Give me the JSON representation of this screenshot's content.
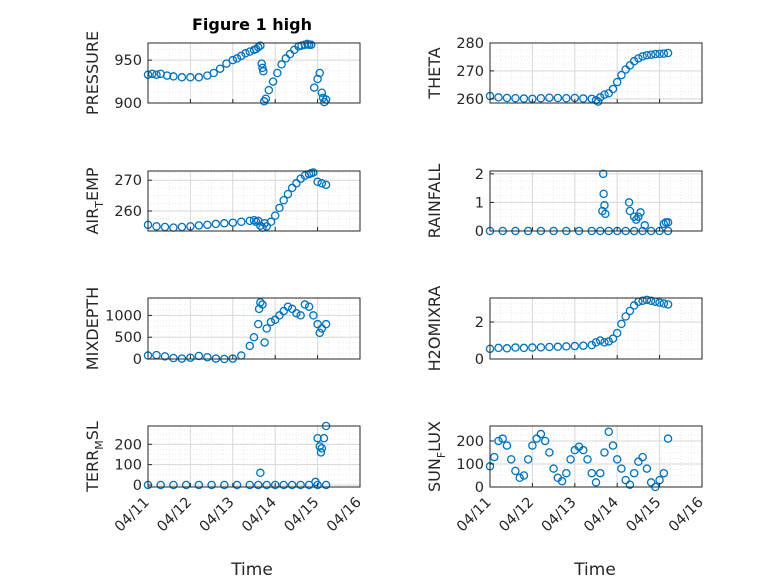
{
  "figure_title": "Figure 1 high",
  "x_axis_label": "Time",
  "chart_data": [
    {
      "type": "scatter",
      "ylabel": "PRESSURE",
      "ylim": [
        900,
        970
      ],
      "yticks": [
        900,
        950
      ],
      "grid": "on",
      "x": [
        0,
        0.1,
        0.2,
        0.3,
        0.45,
        0.6,
        0.8,
        1.0,
        1.2,
        1.4,
        1.55,
        1.7,
        1.85,
        2.0,
        2.1,
        2.2,
        2.3,
        2.4,
        2.5,
        2.55,
        2.6,
        2.65,
        2.68,
        2.7,
        2.72,
        2.74,
        2.78,
        2.85,
        2.95,
        3.05,
        3.15,
        3.25,
        3.35,
        3.45,
        3.55,
        3.62,
        3.7,
        3.76,
        3.8,
        3.85,
        3.92,
        4.0,
        4.05,
        4.1,
        4.13,
        4.16,
        4.2
      ],
      "y": [
        933,
        934,
        933,
        934,
        932,
        931,
        930,
        930,
        930,
        932,
        935,
        940,
        946,
        950,
        952,
        955,
        958,
        960,
        962,
        963,
        965,
        967,
        946,
        941,
        937,
        902,
        905,
        915,
        925,
        935,
        945,
        952,
        957,
        962,
        966,
        967,
        968,
        969,
        968,
        968,
        918,
        928,
        935,
        912,
        906,
        901,
        904
      ]
    },
    {
      "type": "scatter",
      "ylabel": "THETA",
      "ylim": [
        258.5,
        280
      ],
      "yticks": [
        260,
        270,
        280
      ],
      "grid": "on",
      "x": [
        0,
        0.2,
        0.4,
        0.6,
        0.8,
        1.0,
        1.2,
        1.4,
        1.6,
        1.8,
        2.0,
        2.2,
        2.4,
        2.5,
        2.55,
        2.6,
        2.7,
        2.8,
        2.9,
        3.0,
        3.1,
        3.2,
        3.3,
        3.4,
        3.5,
        3.6,
        3.7,
        3.8,
        3.9,
        4.0,
        4.1,
        4.2
      ],
      "y": [
        261,
        260.5,
        260.3,
        260.2,
        260.1,
        260,
        260.2,
        260.4,
        260.3,
        260.2,
        260.3,
        260.1,
        260,
        259.5,
        259,
        260.5,
        261.5,
        262,
        263.5,
        266,
        268.5,
        270.5,
        272,
        273.5,
        274.5,
        275.2,
        275.6,
        275.8,
        276,
        276.1,
        276.2,
        276.4
      ]
    },
    {
      "type": "scatter",
      "ylabel": "AIR_TEMP",
      "ylim": [
        253.5,
        273
      ],
      "yticks": [
        260,
        270
      ],
      "grid": "on",
      "x": [
        0,
        0.2,
        0.4,
        0.6,
        0.8,
        1.0,
        1.2,
        1.4,
        1.6,
        1.8,
        2.0,
        2.2,
        2.4,
        2.5,
        2.55,
        2.6,
        2.65,
        2.7,
        2.75,
        2.8,
        2.9,
        3.0,
        3.1,
        3.2,
        3.3,
        3.4,
        3.5,
        3.6,
        3.7,
        3.8,
        3.85,
        3.9,
        4.0,
        4.1,
        4.2
      ],
      "y": [
        255.5,
        255,
        254.8,
        254.6,
        254.8,
        255,
        255.3,
        255.5,
        255.8,
        256,
        256.2,
        256.5,
        256.8,
        257,
        256.5,
        256.8,
        255.2,
        254.6,
        256,
        255,
        256.5,
        258.5,
        261,
        263.5,
        265.5,
        267.5,
        269,
        270.5,
        271.5,
        272,
        272.3,
        272.5,
        269.5,
        269,
        268.5
      ]
    },
    {
      "type": "scatter",
      "ylabel": "RAINFALL",
      "ylim": [
        0,
        2.1
      ],
      "yticks": [
        0,
        1,
        2
      ],
      "grid": "on",
      "x": [
        0,
        0.3,
        0.6,
        0.9,
        1.2,
        1.5,
        1.8,
        2.1,
        2.4,
        2.6,
        2.8,
        3.0,
        3.2,
        3.4,
        3.6,
        3.8,
        4.0,
        4.2,
        2.65,
        2.67,
        2.68,
        2.7,
        2.72,
        3.28,
        3.3,
        3.4,
        3.45,
        3.5,
        3.55,
        3.65,
        4.1,
        4.15,
        4.2
      ],
      "y": [
        0,
        0,
        0,
        0,
        0,
        0,
        0,
        0,
        0,
        0,
        0,
        0,
        0,
        0,
        0,
        0,
        0,
        0,
        0.7,
        2.0,
        1.3,
        0.9,
        0.6,
        1.0,
        0.7,
        0.5,
        0.4,
        0.5,
        0.65,
        0.2,
        0.25,
        0.3,
        0.3
      ]
    },
    {
      "type": "scatter",
      "ylabel": "MIXDEPTH",
      "ylim": [
        0,
        1400
      ],
      "yticks": [
        0,
        500,
        1000
      ],
      "grid": "on",
      "x": [
        0,
        0.2,
        0.4,
        0.6,
        0.8,
        1.0,
        1.2,
        1.4,
        1.6,
        1.8,
        2.0,
        2.2,
        2.4,
        2.5,
        2.6,
        2.62,
        2.65,
        2.7,
        2.75,
        2.8,
        2.9,
        3.0,
        3.1,
        3.2,
        3.3,
        3.4,
        3.5,
        3.6,
        3.7,
        3.8,
        3.9,
        4.0,
        4.05,
        4.1,
        4.2
      ],
      "y": [
        80,
        90,
        60,
        20,
        10,
        30,
        70,
        40,
        10,
        0,
        10,
        80,
        300,
        500,
        800,
        1150,
        1300,
        1250,
        380,
        700,
        850,
        900,
        1000,
        1100,
        1200,
        1150,
        1050,
        1000,
        1250,
        1200,
        1000,
        800,
        600,
        700,
        800
      ]
    },
    {
      "type": "scatter",
      "ylabel": "H2OMIXRA",
      "ylim": [
        0,
        3.3
      ],
      "yticks": [
        0,
        2
      ],
      "grid": "on",
      "x": [
        0,
        0.2,
        0.4,
        0.6,
        0.8,
        1.0,
        1.2,
        1.4,
        1.6,
        1.8,
        2.0,
        2.2,
        2.4,
        2.5,
        2.6,
        2.7,
        2.8,
        2.9,
        3.0,
        3.1,
        3.2,
        3.3,
        3.4,
        3.5,
        3.6,
        3.7,
        3.8,
        3.9,
        4.0,
        4.1,
        4.2
      ],
      "y": [
        0.55,
        0.6,
        0.58,
        0.62,
        0.6,
        0.62,
        0.63,
        0.65,
        0.66,
        0.68,
        0.7,
        0.72,
        0.75,
        0.9,
        1.0,
        0.9,
        0.95,
        1.1,
        1.4,
        1.9,
        2.3,
        2.6,
        2.9,
        3.1,
        3.15,
        3.2,
        3.15,
        3.1,
        3.05,
        3.0,
        2.95
      ]
    },
    {
      "type": "scatter",
      "ylabel": "TERR_MSL",
      "ylim": [
        -10,
        290
      ],
      "yticks": [
        0,
        100,
        200
      ],
      "grid": "on",
      "x": [
        0,
        0.3,
        0.6,
        0.9,
        1.2,
        1.5,
        1.8,
        2.1,
        2.4,
        2.6,
        2.8,
        3.0,
        3.2,
        3.4,
        3.6,
        3.8,
        4.0,
        4.2,
        2.65,
        3.95,
        4.0,
        4.05,
        4.08,
        4.1,
        4.15,
        4.2
      ],
      "y": [
        0,
        0,
        0,
        0,
        0,
        0,
        0,
        0,
        0,
        0,
        0,
        0,
        0,
        0,
        0,
        0,
        0,
        0,
        60,
        15,
        230,
        190,
        160,
        180,
        230,
        290
      ]
    },
    {
      "type": "scatter",
      "ylabel": "SUN_FLUX",
      "ylim": [
        0,
        265
      ],
      "yticks": [
        0,
        100,
        200
      ],
      "grid": "on",
      "x": [
        0,
        0.1,
        0.2,
        0.3,
        0.4,
        0.5,
        0.6,
        0.7,
        0.8,
        0.9,
        1.0,
        1.1,
        1.2,
        1.3,
        1.4,
        1.5,
        1.6,
        1.7,
        1.8,
        1.9,
        2.0,
        2.1,
        2.2,
        2.3,
        2.4,
        2.5,
        2.6,
        2.7,
        2.8,
        2.9,
        3.0,
        3.1,
        3.2,
        3.3,
        3.4,
        3.5,
        3.6,
        3.7,
        3.8,
        3.9,
        4.0,
        4.1,
        4.2
      ],
      "y": [
        90,
        130,
        200,
        210,
        180,
        120,
        70,
        40,
        50,
        120,
        180,
        210,
        230,
        200,
        150,
        80,
        40,
        25,
        60,
        120,
        160,
        175,
        160,
        120,
        60,
        20,
        60,
        150,
        240,
        180,
        120,
        80,
        30,
        10,
        60,
        110,
        130,
        80,
        20,
        0,
        30,
        60,
        210
      ]
    }
  ],
  "x_ticks": [
    "04/11",
    "04/12",
    "04/13",
    "04/14",
    "04/15",
    "04/16"
  ]
}
